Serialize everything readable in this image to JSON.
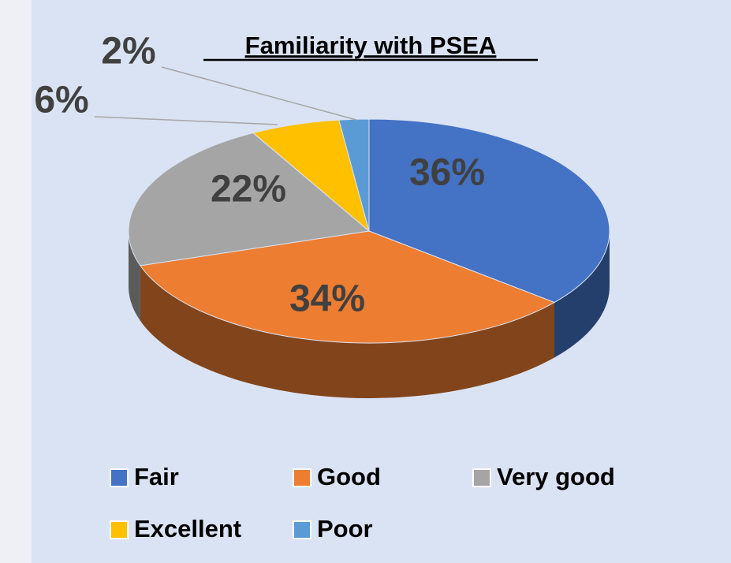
{
  "chart_data": {
    "type": "pie",
    "title": "Familiarity with PSEA",
    "categories": [
      "Fair",
      "Good",
      "Very good",
      "Excellent",
      "Poor"
    ],
    "values": [
      36,
      34,
      22,
      6,
      2
    ],
    "value_labels": [
      "36%",
      "34%",
      "22%",
      "6%",
      "2%"
    ],
    "colors": [
      "#4472c4",
      "#ed7d31",
      "#a5a5a5",
      "#ffc000",
      "#5b9bd5"
    ],
    "legend": "bottom"
  }
}
